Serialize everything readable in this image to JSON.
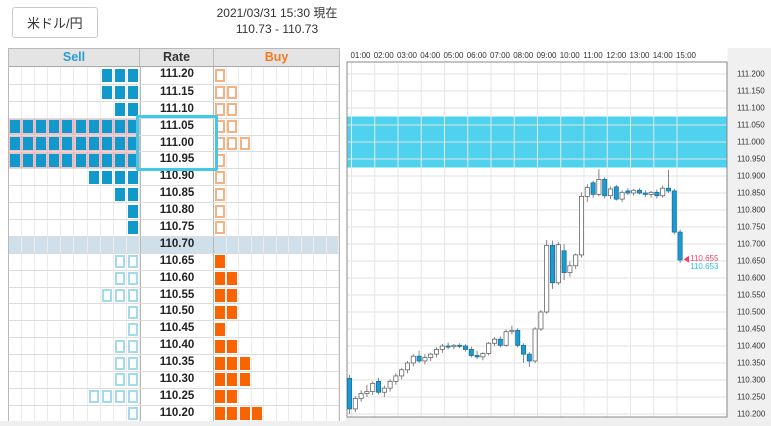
{
  "header": {
    "pair": "米ドル/円",
    "datetime": "2021/03/31 15:30 現在",
    "bid_ask": "110.73 - 110.73"
  },
  "ladder": {
    "columns": {
      "sell": "Sell",
      "rate": "Rate",
      "buy": "Buy"
    },
    "grid_cols": 10,
    "current_rate": "110.70",
    "selected_rates": [
      "111.05",
      "111.00",
      "110.95"
    ],
    "rows": [
      {
        "rate": "111.20",
        "sell": 3,
        "buy": 1
      },
      {
        "rate": "111.15",
        "sell": 3,
        "buy": 2
      },
      {
        "rate": "111.10",
        "sell": 2,
        "buy": 2
      },
      {
        "rate": "111.05",
        "sell": 10,
        "buy": 2,
        "selected": true
      },
      {
        "rate": "111.00",
        "sell": 10,
        "buy": 3,
        "selected": true
      },
      {
        "rate": "110.95",
        "sell": 10,
        "buy": 1,
        "selected": true
      },
      {
        "rate": "110.90",
        "sell": 4,
        "buy": 1
      },
      {
        "rate": "110.85",
        "sell": 2,
        "buy": 1
      },
      {
        "rate": "110.80",
        "sell": 1,
        "buy": 1
      },
      {
        "rate": "110.75",
        "sell": 1,
        "buy": 1
      },
      {
        "rate": "110.70",
        "sell": 0,
        "buy": 0,
        "current": true
      },
      {
        "rate": "110.65",
        "sell": 2,
        "buy": 1
      },
      {
        "rate": "110.60",
        "sell": 2,
        "buy": 2
      },
      {
        "rate": "110.55",
        "sell": 3,
        "buy": 2
      },
      {
        "rate": "110.50",
        "sell": 1,
        "buy": 2
      },
      {
        "rate": "110.45",
        "sell": 1,
        "buy": 1
      },
      {
        "rate": "110.40",
        "sell": 2,
        "buy": 2
      },
      {
        "rate": "110.35",
        "sell": 2,
        "buy": 3
      },
      {
        "rate": "110.30",
        "sell": 2,
        "buy": 3
      },
      {
        "rate": "110.25",
        "sell": 4,
        "buy": 2
      },
      {
        "rate": "110.20",
        "sell": 1,
        "buy": 4
      }
    ]
  },
  "chart": {
    "time_labels": [
      "01:00",
      "02:00",
      "03:00",
      "04:00",
      "05:00",
      "06:00",
      "07:00",
      "08:00",
      "09:00",
      "10:00",
      "11:00",
      "12:00",
      "13:00",
      "14:00",
      "15:00"
    ],
    "price_labels": [
      "111.200",
      "111.150",
      "111.100",
      "111.050",
      "111.000",
      "110.950",
      "110.900",
      "110.850",
      "110.800",
      "110.750",
      "110.700",
      "110.650",
      "110.600",
      "110.550",
      "110.500",
      "110.450",
      "110.400",
      "110.350",
      "110.300",
      "110.250",
      "110.200"
    ],
    "marker": {
      "price1": "110.655",
      "price2": "110.653"
    }
  },
  "chart_data": {
    "type": "candlestick",
    "interval": "15min",
    "ylim": [
      110.18,
      111.24
    ],
    "grid": true,
    "highlight_band": {
      "from": 110.925,
      "to": 111.075
    },
    "candles": [
      [
        "01:00",
        110.305,
        110.315,
        110.2,
        110.215
      ],
      [
        "01:15",
        110.215,
        110.252,
        110.205,
        110.246
      ],
      [
        "01:30",
        110.246,
        110.27,
        110.236,
        110.26
      ],
      [
        "01:45",
        110.26,
        110.286,
        110.25,
        110.266
      ],
      [
        "02:00",
        110.266,
        110.296,
        110.256,
        110.29
      ],
      [
        "02:15",
        110.296,
        110.306,
        110.258,
        110.264
      ],
      [
        "02:30",
        110.264,
        110.284,
        110.25,
        110.276
      ],
      [
        "02:45",
        110.276,
        110.302,
        110.266,
        110.296
      ],
      [
        "03:00",
        110.296,
        110.32,
        110.286,
        110.312
      ],
      [
        "03:15",
        110.312,
        110.336,
        110.302,
        110.33
      ],
      [
        "03:30",
        110.33,
        110.356,
        110.32,
        110.35
      ],
      [
        "03:45",
        110.35,
        110.376,
        110.34,
        110.37
      ],
      [
        "04:00",
        110.37,
        110.386,
        110.35,
        110.356
      ],
      [
        "04:15",
        110.356,
        110.376,
        110.346,
        110.366
      ],
      [
        "04:30",
        110.366,
        110.38,
        110.356,
        110.376
      ],
      [
        "04:45",
        110.376,
        110.396,
        110.366,
        110.39
      ],
      [
        "05:00",
        110.39,
        110.406,
        110.38,
        110.4
      ],
      [
        "05:15",
        110.4,
        110.41,
        110.39,
        110.398
      ],
      [
        "05:30",
        110.398,
        110.406,
        110.39,
        110.402
      ],
      [
        "05:45",
        110.402,
        110.408,
        110.394,
        110.4
      ],
      [
        "06:00",
        110.4,
        110.405,
        110.384,
        110.39
      ],
      [
        "06:15",
        110.39,
        110.398,
        110.366,
        110.372
      ],
      [
        "06:30",
        110.372,
        110.386,
        110.362,
        110.368
      ],
      [
        "06:45",
        110.368,
        110.382,
        110.358,
        110.378
      ],
      [
        "07:00",
        110.378,
        110.412,
        110.372,
        110.408
      ],
      [
        "07:15",
        110.408,
        110.426,
        110.4,
        110.42
      ],
      [
        "07:30",
        110.42,
        110.428,
        110.396,
        110.402
      ],
      [
        "07:45",
        110.402,
        110.448,
        110.398,
        110.442
      ],
      [
        "08:00",
        110.442,
        110.46,
        110.434,
        110.446
      ],
      [
        "08:15",
        110.446,
        110.452,
        110.396,
        110.402
      ],
      [
        "08:30",
        110.402,
        110.408,
        110.35,
        110.376
      ],
      [
        "08:45",
        110.376,
        110.382,
        110.338,
        110.356
      ],
      [
        "09:00",
        110.356,
        110.455,
        110.35,
        110.45
      ],
      [
        "09:15",
        110.45,
        110.506,
        110.444,
        110.5
      ],
      [
        "09:30",
        110.5,
        110.712,
        110.495,
        110.696
      ],
      [
        "09:45",
        110.696,
        110.71,
        110.568,
        110.586
      ],
      [
        "10:00",
        110.586,
        110.706,
        110.58,
        110.698
      ],
      [
        "10:15",
        110.68,
        110.7,
        110.594,
        110.616
      ],
      [
        "10:30",
        110.616,
        110.648,
        110.604,
        110.636
      ],
      [
        "10:45",
        110.636,
        110.672,
        110.626,
        110.668
      ],
      [
        "11:00",
        110.668,
        110.852,
        110.66,
        110.84
      ],
      [
        "11:15",
        110.84,
        110.876,
        110.824,
        110.866
      ],
      [
        "11:30",
        110.88,
        110.886,
        110.836,
        110.846
      ],
      [
        "11:45",
        110.846,
        110.92,
        110.84,
        110.89
      ],
      [
        "12:00",
        110.89,
        110.896,
        110.834,
        110.842
      ],
      [
        "12:15",
        110.842,
        110.868,
        110.832,
        110.862
      ],
      [
        "12:30",
        110.868,
        110.874,
        110.828,
        110.832
      ],
      [
        "12:45",
        110.832,
        110.858,
        110.824,
        110.852
      ],
      [
        "13:00",
        110.856,
        110.864,
        110.844,
        110.85
      ],
      [
        "13:15",
        110.85,
        110.862,
        110.842,
        110.858
      ],
      [
        "13:30",
        110.858,
        110.864,
        110.846,
        110.85
      ],
      [
        "13:45",
        110.85,
        110.858,
        110.838,
        110.846
      ],
      [
        "14:00",
        110.846,
        110.856,
        110.836,
        110.852
      ],
      [
        "14:15",
        110.852,
        110.86,
        110.834,
        110.842
      ],
      [
        "14:30",
        110.842,
        110.872,
        110.836,
        110.864
      ],
      [
        "14:45",
        110.864,
        110.918,
        110.85,
        110.856
      ],
      [
        "15:00",
        110.856,
        110.862,
        110.728,
        110.735
      ],
      [
        "15:15",
        110.735,
        110.742,
        110.645,
        110.653
      ]
    ]
  },
  "colors": {
    "sell_blue": "#1299cc",
    "sell_outline": "#a5d9ec",
    "buy_orange": "#fa6400",
    "buy_outline": "#f5b183",
    "selected_pink": "#eec3c8",
    "selection_cyan": "#44c8e8",
    "current_row": "#cfe0ea",
    "band_cyan": "#4fd2ee",
    "candle_down": "#1e9ad2",
    "candle_up": "#ffffff",
    "marker_red": "#ef436a",
    "marker_cyan": "#2fc1e2"
  }
}
